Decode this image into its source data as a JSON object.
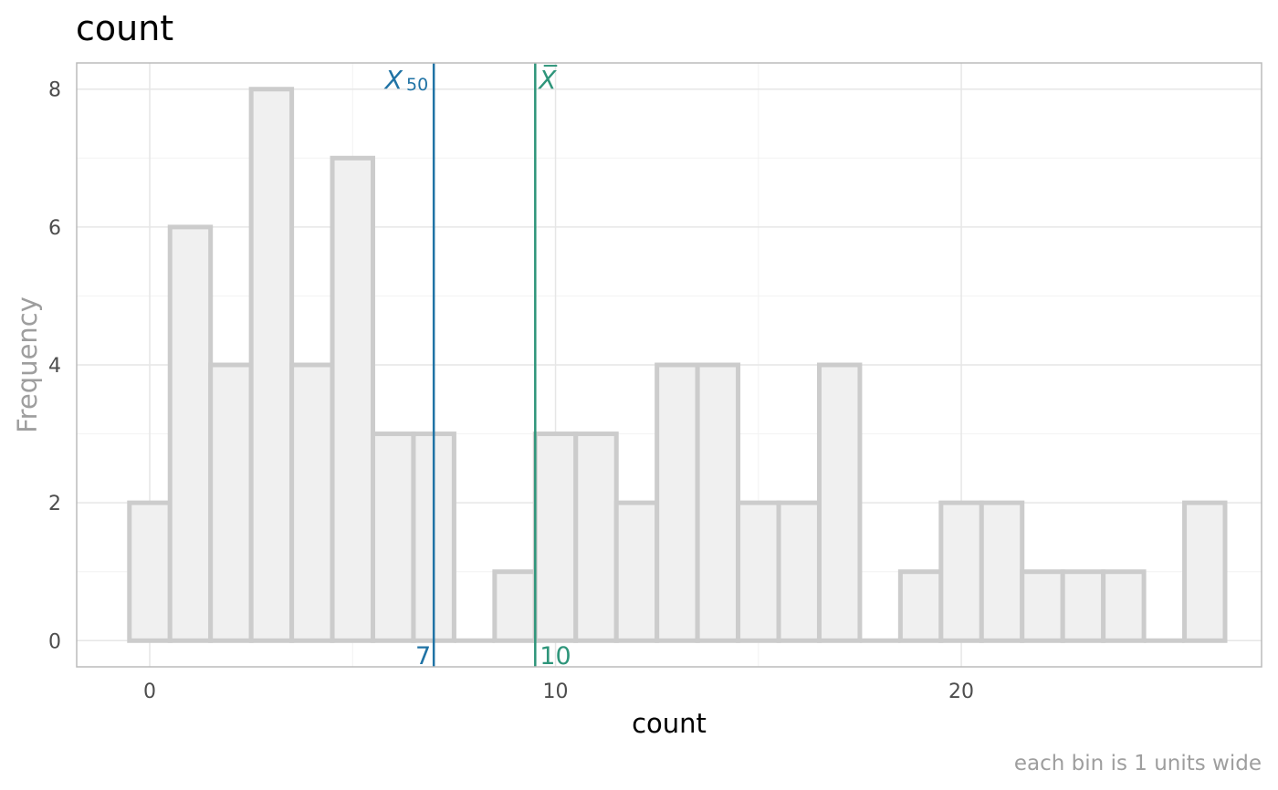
{
  "chart_data": {
    "type": "bar",
    "subtype": "histogram",
    "title": "count",
    "xlabel": "count",
    "ylabel": "Frequency",
    "caption": "each bin is 1 units wide",
    "bin_width": 1,
    "bins": [
      0,
      1,
      2,
      3,
      4,
      5,
      6,
      7,
      8,
      9,
      10,
      11,
      12,
      13,
      14,
      15,
      16,
      17,
      18,
      19,
      20,
      21,
      22,
      23,
      24,
      25,
      26
    ],
    "values": [
      2,
      6,
      4,
      8,
      4,
      7,
      3,
      3,
      0,
      1,
      3,
      3,
      2,
      4,
      4,
      2,
      2,
      4,
      0,
      1,
      2,
      2,
      1,
      1,
      1,
      0,
      2
    ],
    "xlim": [
      -1.8,
      27.4
    ],
    "ylim": [
      -0.38,
      8.38
    ],
    "x_ticks": [
      0,
      10,
      20
    ],
    "y_ticks": [
      0,
      2,
      4,
      6,
      8
    ],
    "grid": true,
    "bar_fill": "#f0f0f0",
    "bar_stroke": "#cccccc",
    "reference_lines": [
      {
        "x": 7,
        "label_top": "X",
        "label_sub": "50",
        "label_bottom": "7",
        "color": "#2073a5",
        "side": "left"
      },
      {
        "x": 9.5,
        "label_top": "X̅",
        "label_bottom": "10",
        "color": "#2e957a",
        "side": "right"
      }
    ]
  }
}
